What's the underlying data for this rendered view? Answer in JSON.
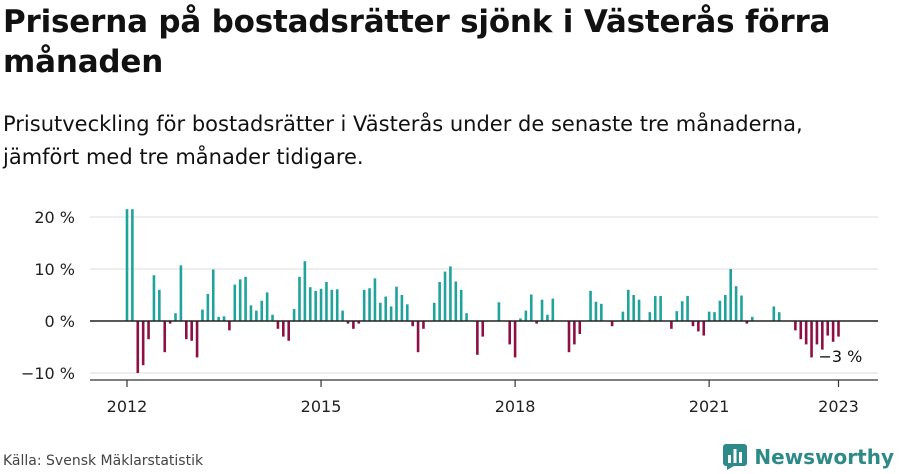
{
  "title": "Priserna på bostadsrätter sjönk i Västerås förra månaden",
  "subtitle": "Prisutveckling för bostadsrätter i Västerås under de senaste tre månaderna, jämfört med tre månader tidigare.",
  "source": "Källa: Svensk Mäklarstatistik",
  "brand": "Newsworthy",
  "colors": {
    "positive": "#1fa39b",
    "negative": "#8c1046",
    "grid": "#dddddd",
    "axis": "#222222"
  },
  "chart_data": {
    "type": "bar",
    "x_unit": "month",
    "x_start": "2012-01",
    "x_end": "2023-01",
    "ylim": [
      -12,
      22
    ],
    "y_ticks": [
      {
        "value": 20,
        "label": "20 %"
      },
      {
        "value": 10,
        "label": "10 %"
      },
      {
        "value": 0,
        "label": "0 %"
      },
      {
        "value": -10,
        "label": "−10 %"
      }
    ],
    "x_ticks": [
      {
        "index": 0,
        "label": "2012"
      },
      {
        "index": 36,
        "label": "2015"
      },
      {
        "index": 72,
        "label": "2018"
      },
      {
        "index": 108,
        "label": "2021"
      },
      {
        "index": 132,
        "label": "2023"
      }
    ],
    "grid": true,
    "annotation": {
      "index": 132,
      "label": "−3 %"
    },
    "values": [
      21.5,
      21.5,
      -10,
      -8.5,
      -3.5,
      8.8,
      6,
      -6,
      -0.5,
      1.5,
      10.7,
      -3.5,
      -3.8,
      -7,
      2.2,
      5.2,
      9.9,
      0.8,
      0.9,
      -1.8,
      7,
      8,
      8.5,
      3,
      2,
      3.9,
      5.5,
      1.2,
      -1.5,
      -3,
      -3.8,
      2.3,
      8.5,
      11.5,
      6.5,
      5.8,
      6.2,
      7.5,
      6,
      6.1,
      2,
      -0.5,
      -1.5,
      -0.5,
      6,
      6.3,
      8.2,
      3.5,
      4.7,
      2.8,
      6.6,
      5,
      3.2,
      -1,
      -6,
      -1.5,
      0,
      3.5,
      7.5,
      9.5,
      10.5,
      7.6,
      6,
      1.5,
      0,
      -6.5,
      -3,
      0,
      0,
      3.6,
      0,
      -4.5,
      -7,
      0.5,
      2,
      5.1,
      -0.5,
      4.1,
      1.2,
      4.3,
      0,
      0,
      -6,
      -4.5,
      -2.5,
      0,
      5.8,
      3.7,
      3.3,
      0,
      -1,
      0,
      1.8,
      6,
      5,
      4.1,
      0,
      1.7,
      4.8,
      4.8,
      0,
      -1.5,
      1.9,
      3.8,
      4.8,
      -1,
      -2,
      -2.8,
      1.8,
      1.7,
      3.9,
      5,
      10,
      6.7,
      4.9,
      -0.5,
      0.8,
      0,
      0,
      0,
      2.8,
      1.7,
      0,
      0,
      -1.8,
      -3.5,
      -4.5,
      -7,
      -4.5,
      -5.5,
      -2.8,
      -4,
      -3
    ]
  }
}
